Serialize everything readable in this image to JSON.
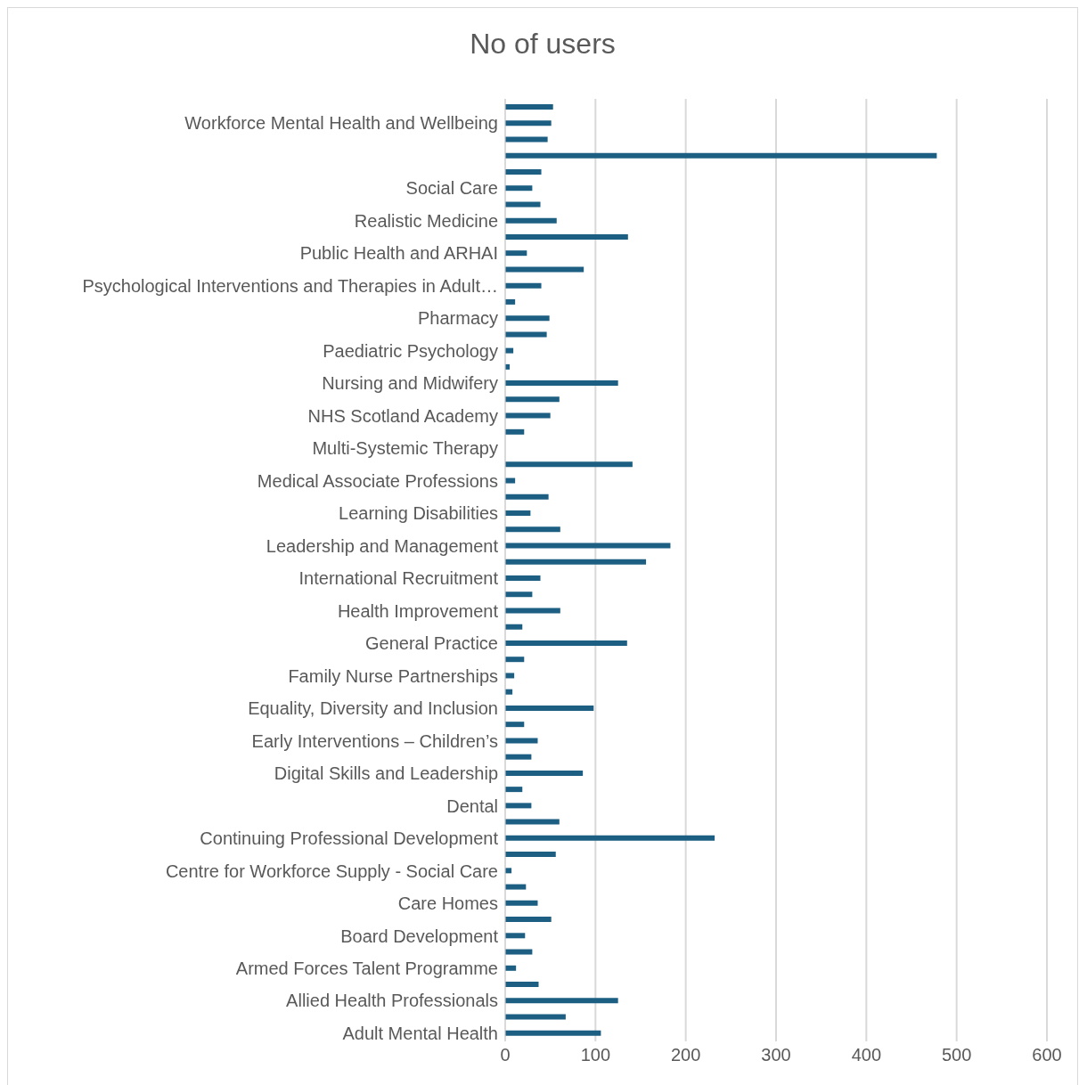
{
  "chart_data": {
    "type": "bar",
    "orientation": "horizontal",
    "title": "No of users",
    "categories": [
      null,
      "Workforce Mental Health and Wellbeing",
      null,
      null,
      null,
      "Social Care",
      null,
      "Realistic Medicine",
      null,
      "Public Health and ARHAI",
      null,
      "Psychological Interventions and Therapies in Adult…",
      null,
      "Pharmacy",
      null,
      "Paediatric Psychology",
      null,
      "Nursing and Midwifery",
      null,
      "NHS Scotland Academy",
      null,
      "Multi-Systemic Therapy",
      null,
      "Medical Associate Professions",
      null,
      "Learning Disabilities",
      null,
      "Leadership and Management",
      null,
      "International Recruitment",
      null,
      "Health Improvement",
      null,
      "General Practice",
      null,
      "Family Nurse Partnerships",
      null,
      "Equality, Diversity and Inclusion",
      null,
      "Early Interventions – Children’s",
      null,
      "Digital Skills and Leadership",
      null,
      "Dental",
      null,
      "Continuing Professional Development",
      null,
      "Centre for Workforce Supply - Social Care",
      null,
      "Care Homes",
      null,
      "Board Development",
      null,
      "Armed Forces Talent Programme",
      null,
      "Allied Health Professionals",
      null,
      "Adult Mental Health"
    ],
    "series": [
      {
        "color": "#1c5f82",
        "values": [
          53,
          51,
          47,
          478,
          40,
          30,
          39,
          57,
          136,
          24,
          87,
          40,
          11,
          49,
          46,
          9,
          5,
          125,
          60,
          50,
          21,
          0,
          141,
          11,
          48,
          28,
          61,
          183,
          156,
          39,
          30,
          61,
          19,
          135,
          21,
          10,
          8,
          98,
          21,
          36,
          29,
          86,
          19,
          29,
          60,
          232,
          56,
          7,
          23,
          36,
          51,
          22,
          30,
          12,
          37,
          125,
          67,
          106
        ]
      }
    ],
    "xlim": [
      0,
      600
    ],
    "xticks": [
      0,
      100,
      200,
      300,
      400,
      500,
      600
    ],
    "grid": "x",
    "legend": false
  }
}
